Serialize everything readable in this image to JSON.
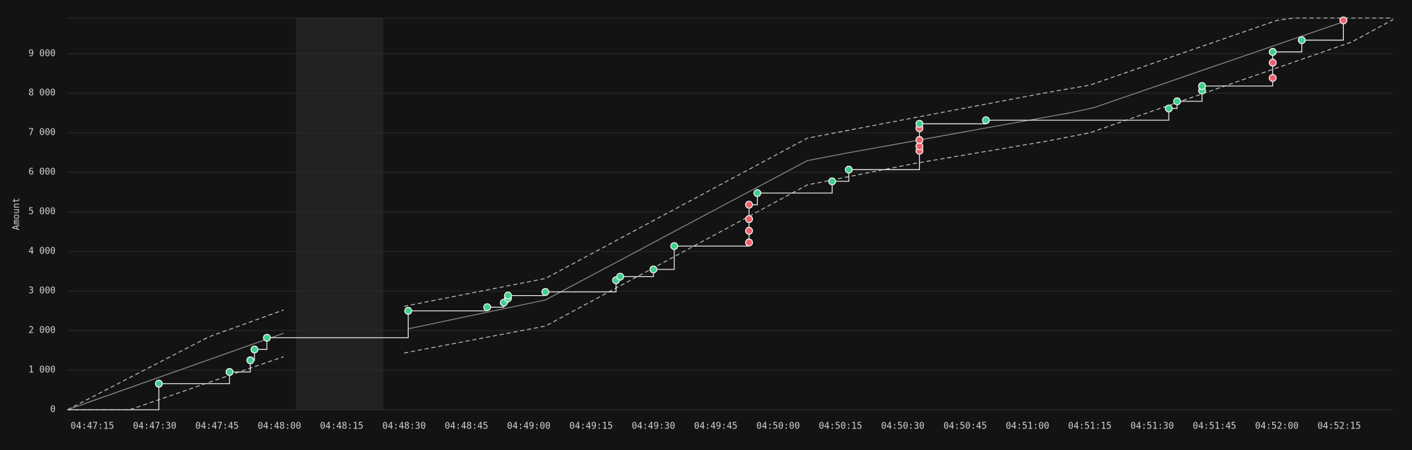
{
  "chart_data": {
    "type": "step",
    "y_label": "Amount",
    "xlim": [
      "04:47:09",
      "04:52:28"
    ],
    "ylim": [
      0,
      9900
    ],
    "xticks": [
      "04:47:15",
      "04:47:30",
      "04:47:45",
      "04:48:00",
      "04:48:15",
      "04:48:30",
      "04:48:45",
      "04:49:00",
      "04:49:15",
      "04:49:30",
      "04:49:45",
      "04:50:00",
      "04:50:15",
      "04:50:30",
      "04:50:45",
      "04:51:00",
      "04:51:15",
      "04:51:30",
      "04:51:45",
      "04:52:00",
      "04:52:15"
    ],
    "yticks": [
      0,
      {
        "value": 1000,
        "label": "1 000"
      },
      {
        "value": 2000,
        "label": "2 000"
      },
      {
        "value": 3000,
        "label": "3 000"
      },
      {
        "value": 4000,
        "label": "4 000"
      },
      {
        "value": 5000,
        "label": "5 000"
      },
      {
        "value": 6000,
        "label": "6 000"
      },
      {
        "value": 7000,
        "label": "7 000"
      },
      {
        "value": 8000,
        "label": "8 000"
      },
      {
        "value": 9000,
        "label": "9 000"
      }
    ],
    "grid": true,
    "shaded_range": [
      "04:48:04",
      "04:48:25"
    ],
    "steps": {
      "color": "#e8e8e8",
      "x": [
        "04:47:31",
        "04:47:48",
        "04:47:53",
        "04:47:54",
        "04:47:57",
        "04:48:31",
        "04:48:50",
        "04:48:54",
        "04:48:55",
        "04:48:55",
        "04:49:04",
        "04:49:21",
        "04:49:22",
        "04:49:30",
        "04:49:35",
        "04:49:53",
        "04:49:53",
        "04:49:53",
        "04:49:53",
        "04:49:55",
        "04:50:13",
        "04:50:17",
        "04:50:34",
        "04:50:34",
        "04:50:34",
        "04:50:34",
        "04:50:34",
        "04:50:50",
        "04:51:34",
        "04:51:36",
        "04:51:42",
        "04:51:42",
        "04:51:59",
        "04:51:59",
        "04:51:59",
        "04:52:06",
        "04:52:16"
      ],
      "values": [
        659,
        955,
        1250,
        1523,
        1818,
        2500,
        2591,
        2705,
        2818,
        2886,
        2977,
        3273,
        3364,
        3545,
        4136,
        4227,
        4523,
        4818,
        5182,
        5477,
        5773,
        6068,
        6545,
        6659,
        6818,
        7114,
        7227,
        7318,
        7614,
        7795,
        8068,
        8182,
        8386,
        8773,
        9045,
        9341,
        9841
      ],
      "colors": [
        "#3ecf8e",
        "#3ecf8e",
        "#3ecf8e",
        "#3ecf8e",
        "#3ecf8e",
        "#3ecf8e",
        "#3ecf8e",
        "#3ecf8e",
        "#3ecf8e",
        "#3ecf8e",
        "#3ecf8e",
        "#3ecf8e",
        "#3ecf8e",
        "#3ecf8e",
        "#3ecf8e",
        "#f0606c",
        "#f0606c",
        "#f0606c",
        "#f0606c",
        "#3ecf8e",
        "#3ecf8e",
        "#3ecf8e",
        "#f0606c",
        "#f0606c",
        "#f0606c",
        "#f0606c",
        "#3ecf8e",
        "#3ecf8e",
        "#3ecf8e",
        "#3ecf8e",
        "#3ecf8e",
        "#3ecf8e",
        "#f0606c",
        "#f0606c",
        "#3ecf8e",
        "#3ecf8e",
        "#f0606c"
      ]
    },
    "mean": {
      "color": "#8a8a8a",
      "x": [
        "04:47:09",
        "04:48:01",
        null,
        "04:48:31",
        "04:49:04",
        "04:50:07",
        "04:50:16",
        "04:51:10",
        "04:51:16",
        "04:52:17"
      ],
      "values": [
        0,
        1932,
        null,
        2045,
        2773,
        6295,
        6477,
        7500,
        7636,
        9841
      ]
    },
    "upper": {
      "color": "#bdbdbd",
      "x": [
        "04:47:09",
        "04:47:43",
        "04:48:01",
        null,
        "04:48:30",
        "04:49:04",
        "04:50:07",
        "04:50:33",
        "04:51:05",
        "04:51:15",
        "04:52:00",
        "04:52:04",
        "04:52:28"
      ],
      "values": [
        0,
        1841,
        2523,
        null,
        2614,
        3318,
        6864,
        7386,
        8023,
        8205,
        9841,
        9900,
        9900
      ]
    },
    "lower": {
      "color": "#bdbdbd",
      "x": [
        "04:47:09",
        "04:47:24",
        "04:48:01",
        null,
        "04:48:30",
        "04:49:04",
        "04:50:07",
        "04:50:33",
        "04:51:05",
        "04:51:15",
        "04:52:18",
        "04:52:28"
      ],
      "values": [
        0,
        0,
        1341,
        null,
        1432,
        2114,
        5682,
        6227,
        6795,
        7000,
        9295,
        9864
      ]
    }
  }
}
